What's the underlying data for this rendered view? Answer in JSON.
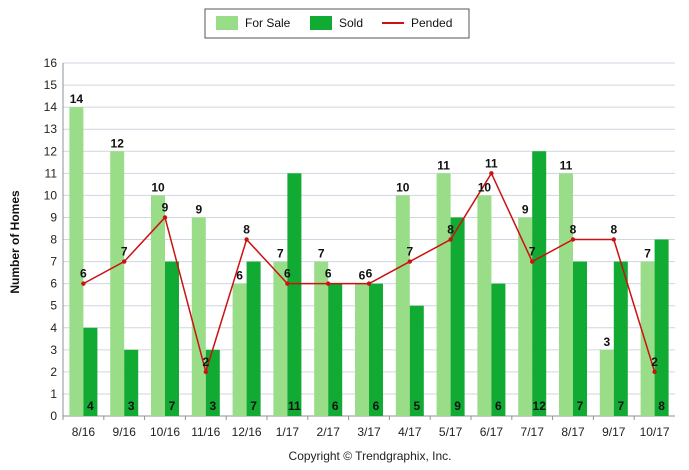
{
  "chart_data": {
    "type": "bar",
    "ylabel": "Number of Homes",
    "xlabel": "",
    "ylim": [
      0,
      16
    ],
    "yticks": [
      0,
      1,
      2,
      3,
      4,
      5,
      6,
      7,
      8,
      9,
      10,
      11,
      12,
      13,
      14,
      15,
      16
    ],
    "grid": true,
    "legend": "top-center",
    "categories": [
      "8/16",
      "9/16",
      "10/16",
      "11/16",
      "12/16",
      "1/17",
      "2/17",
      "3/17",
      "4/17",
      "5/17",
      "6/17",
      "7/17",
      "8/17",
      "9/17",
      "10/17"
    ],
    "series": [
      {
        "name": "For Sale",
        "type": "bar",
        "color": "#99dd88",
        "values": [
          14,
          12,
          10,
          9,
          6,
          7,
          7,
          6,
          10,
          11,
          10,
          9,
          11,
          3,
          7
        ]
      },
      {
        "name": "Sold",
        "type": "bar",
        "color": "#11aa33",
        "values": [
          4,
          3,
          7,
          3,
          7,
          11,
          6,
          6,
          5,
          9,
          6,
          12,
          7,
          7,
          8
        ]
      },
      {
        "name": "Pended",
        "type": "line",
        "color": "#cc1111",
        "values": [
          6,
          7,
          9,
          2,
          8,
          6,
          6,
          6,
          7,
          8,
          11,
          7,
          8,
          8,
          2
        ]
      }
    ]
  },
  "footer": {
    "copyright": "Copyright © Trendgraphix, Inc."
  }
}
